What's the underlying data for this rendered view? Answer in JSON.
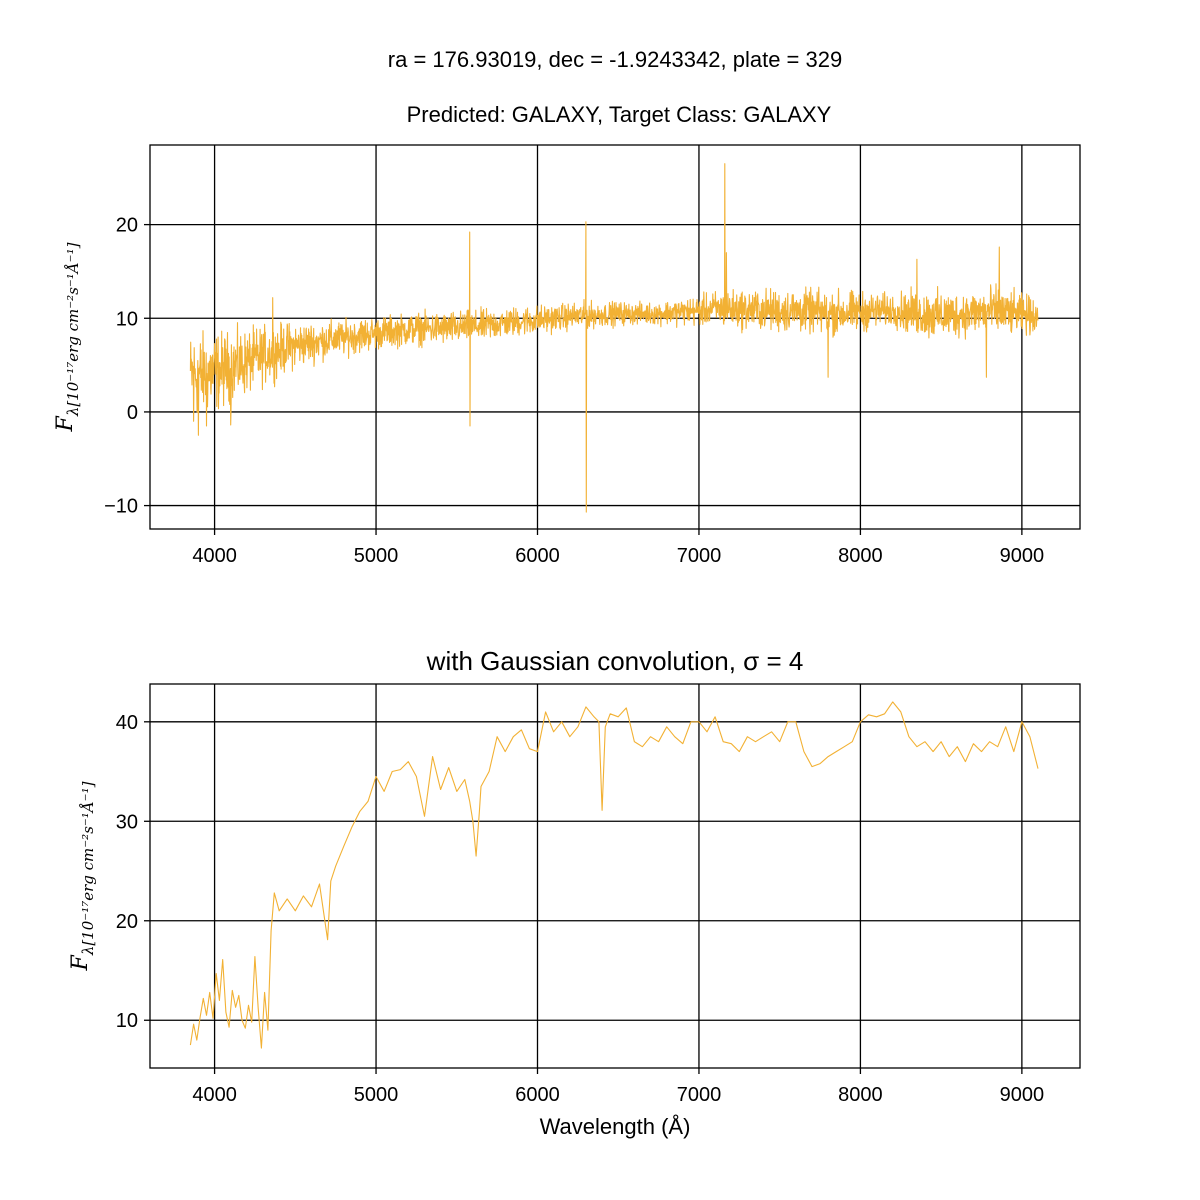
{
  "figure": {
    "suptitle": "ra = 176.93019, dec = -1.9243342, plate = 329"
  },
  "chart_data": [
    {
      "type": "line",
      "title": "Predicted: GALAXY, Target Class: GALAXY",
      "xlabel": "",
      "ylabel_main": "F",
      "ylabel_sub": "λ[10⁻¹⁷erg cm⁻²s⁻¹Å⁻¹]",
      "xlim": [
        3600,
        9360
      ],
      "ylim": [
        -12.5,
        28.5
      ],
      "xticks": [
        4000,
        5000,
        6000,
        7000,
        8000,
        9000
      ],
      "xtick_labels": [
        "4000",
        "5000",
        "6000",
        "7000",
        "8000",
        "9000"
      ],
      "yticks": [
        -10,
        0,
        10,
        20
      ],
      "ytick_labels": [
        "−10",
        "0",
        "10",
        "20"
      ],
      "grid": true,
      "color": "#f2b134",
      "series": [
        {
          "x": [
            3850,
            3900,
            3950,
            4000,
            4050,
            4100,
            4150,
            4200,
            4250,
            4300,
            4350,
            4400,
            4450,
            4500,
            4600,
            4700,
            4800,
            4900,
            5000,
            5100,
            5200,
            5300,
            5400,
            5500,
            5600,
            5700,
            5800,
            5900,
            6000,
            6100,
            6200,
            6300,
            6400,
            6500,
            6600,
            6700,
            6800,
            6900,
            7000,
            7100,
            7200,
            7300,
            7400,
            7500,
            7600,
            7700,
            7800,
            7900,
            8000,
            8100,
            8200,
            8300,
            8400,
            8500,
            8600,
            8700,
            8800,
            8900,
            9000,
            9100
          ],
          "y": [
            4.0,
            3.9,
            4.1,
            4.3,
            4.5,
            4.8,
            5.0,
            5.3,
            5.6,
            6.0,
            6.3,
            6.6,
            6.9,
            7.1,
            7.4,
            7.7,
            7.9,
            8.2,
            8.4,
            8.6,
            8.8,
            8.9,
            8.9,
            9.0,
            9.1,
            9.3,
            9.5,
            9.7,
            9.8,
            10.0,
            10.2,
            10.3,
            10.4,
            10.5,
            10.5,
            10.5,
            10.6,
            10.7,
            10.8,
            11.0,
            11.0,
            10.9,
            10.9,
            10.8,
            10.8,
            10.7,
            10.6,
            10.6,
            10.7,
            10.8,
            10.9,
            10.6,
            10.4,
            10.3,
            10.4,
            10.6,
            10.8,
            10.6,
            10.4,
            10.3
          ],
          "noise": [
            3.0,
            3.2,
            3.0,
            3.0,
            2.8,
            2.6,
            2.5,
            2.4,
            2.3,
            2.2,
            2.0,
            1.9,
            1.8,
            1.7,
            1.5,
            1.4,
            1.3,
            1.3,
            1.2,
            1.2,
            1.2,
            1.2,
            1.2,
            1.2,
            1.2,
            1.2,
            1.1,
            1.1,
            1.1,
            1.0,
            1.0,
            1.0,
            0.9,
            0.9,
            0.8,
            0.8,
            0.9,
            1.0,
            1.1,
            1.3,
            1.4,
            1.5,
            1.5,
            1.6,
            1.6,
            1.6,
            1.7,
            1.6,
            1.5,
            1.3,
            1.2,
            1.6,
            1.8,
            1.8,
            1.7,
            1.6,
            1.9,
            1.7,
            1.5,
            1.4
          ],
          "spikes": [
            [
              3870,
              -1
            ],
            [
              3900,
              -2.5
            ],
            [
              3950,
              -1.5
            ],
            [
              4100,
              -1.4
            ],
            [
              4360,
              12.2
            ],
            [
              5580,
              19.2
            ],
            [
              5582,
              -1.5
            ],
            [
              6300,
              20.3
            ],
            [
              6302,
              -10.7
            ],
            [
              7160,
              26.5
            ],
            [
              7170,
              17.0
            ],
            [
              7800,
              3.7
            ],
            [
              8350,
              16.3
            ],
            [
              8780,
              3.7
            ],
            [
              8860,
              17.6
            ]
          ]
        }
      ]
    },
    {
      "type": "line",
      "title": "with Gaussian convolution, σ = 4",
      "xlabel": "Wavelength (Å)",
      "ylabel_main": "F",
      "ylabel_sub": "λ[10⁻¹⁷erg cm⁻²s⁻¹Å⁻¹]",
      "xlim": [
        3600,
        9360
      ],
      "ylim": [
        5.2,
        43.8
      ],
      "xticks": [
        4000,
        5000,
        6000,
        7000,
        8000,
        9000
      ],
      "xtick_labels": [
        "4000",
        "5000",
        "6000",
        "7000",
        "8000",
        "9000"
      ],
      "yticks": [
        10,
        20,
        30,
        40
      ],
      "ytick_labels": [
        "10",
        "20",
        "30",
        "40"
      ],
      "grid": true,
      "color": "#f2b134",
      "series": [
        {
          "x": [
            3850,
            3870,
            3890,
            3910,
            3930,
            3950,
            3970,
            3990,
            4010,
            4030,
            4050,
            4070,
            4090,
            4110,
            4130,
            4150,
            4170,
            4190,
            4210,
            4230,
            4250,
            4270,
            4290,
            4310,
            4330,
            4350,
            4370,
            4400,
            4450,
            4500,
            4550,
            4600,
            4650,
            4700,
            4720,
            4750,
            4800,
            4850,
            4900,
            4950,
            5000,
            5050,
            5100,
            5150,
            5200,
            5250,
            5300,
            5350,
            5400,
            5450,
            5500,
            5550,
            5580,
            5600,
            5620,
            5640,
            5650,
            5700,
            5750,
            5800,
            5850,
            5900,
            5950,
            6000,
            6050,
            6100,
            6150,
            6200,
            6250,
            6300,
            6350,
            6380,
            6400,
            6420,
            6450,
            6500,
            6550,
            6600,
            6650,
            6700,
            6750,
            6800,
            6850,
            6900,
            6950,
            7000,
            7050,
            7100,
            7150,
            7200,
            7250,
            7300,
            7350,
            7400,
            7450,
            7500,
            7550,
            7600,
            7650,
            7700,
            7750,
            7800,
            7850,
            7900,
            7950,
            8000,
            8050,
            8100,
            8150,
            8200,
            8250,
            8300,
            8350,
            8400,
            8450,
            8500,
            8550,
            8600,
            8650,
            8700,
            8750,
            8800,
            8850,
            8900,
            8950,
            9000,
            9050,
            9100
          ],
          "y": [
            7.5,
            9.6,
            8.0,
            10.3,
            12.2,
            10.5,
            12.8,
            10.2,
            14.7,
            12.0,
            16.1,
            10.8,
            9.3,
            13.0,
            11.3,
            12.5,
            10.0,
            9.2,
            11.5,
            9.8,
            16.4,
            11.2,
            7.2,
            12.8,
            9.0,
            19.0,
            22.8,
            21.0,
            22.2,
            21.0,
            22.5,
            21.4,
            23.7,
            18.1,
            24.0,
            25.5,
            27.5,
            29.4,
            31.0,
            32.0,
            34.5,
            33.0,
            35.0,
            35.2,
            36.0,
            34.5,
            30.5,
            36.5,
            33.2,
            35.4,
            33.0,
            34.2,
            32.0,
            30.0,
            26.5,
            31.0,
            33.5,
            35.0,
            38.5,
            37.0,
            38.5,
            39.2,
            37.3,
            37.0,
            41.0,
            39.0,
            40.0,
            38.5,
            39.5,
            41.5,
            40.5,
            40.0,
            31.1,
            39.5,
            40.8,
            40.5,
            41.4,
            38.0,
            37.5,
            38.5,
            38.0,
            39.5,
            38.5,
            37.8,
            40.0,
            40.0,
            39.0,
            40.5,
            38.0,
            37.8,
            37.0,
            38.5,
            38.0,
            38.5,
            39.0,
            38.0,
            40.0,
            40.0,
            37.0,
            35.5,
            35.8,
            36.5,
            37.0,
            37.5,
            38.0,
            40.0,
            40.7,
            40.5,
            40.8,
            42.0,
            41.0,
            38.5,
            37.5,
            38.0,
            37.0,
            38.0,
            36.5,
            37.5,
            36.0,
            37.8,
            37.0,
            38.0,
            37.5,
            39.5,
            37.0,
            40.0,
            38.5,
            35.3
          ],
          "noise": [],
          "spikes": []
        }
      ]
    }
  ]
}
